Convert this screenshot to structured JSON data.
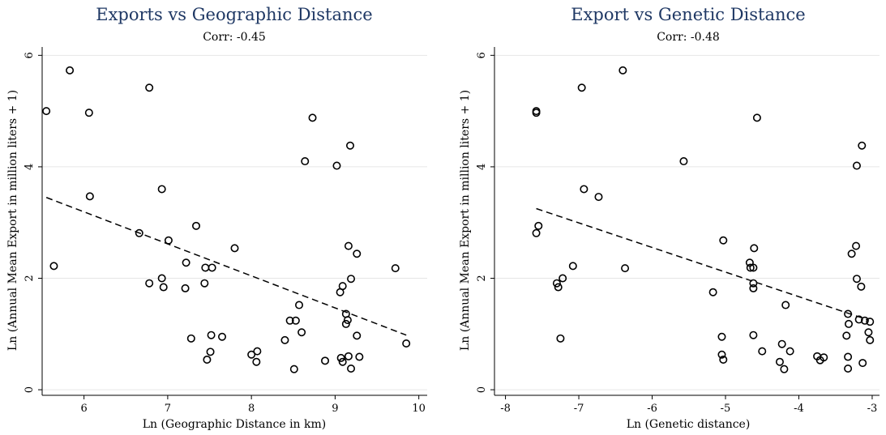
{
  "chart_data": [
    {
      "type": "scatter",
      "title": "Exports vs Geographic Distance",
      "subtitle": "Corr: -0.45",
      "xlabel": "Ln (Geographic Distance in km)",
      "ylabel": "Ln (Annual Mean Export in million liters + 1)",
      "xlim": [
        5.5,
        10.1
      ],
      "ylim": [
        -0.1,
        6.15
      ],
      "xticks": [
        6,
        7,
        8,
        9,
        10
      ],
      "yticks": [
        0,
        2,
        4,
        6
      ],
      "grid": true,
      "fit_line": [
        [
          5.55,
          3.45
        ],
        [
          9.85,
          0.98
        ]
      ],
      "points": [
        [
          5.55,
          5.0
        ],
        [
          5.83,
          5.73
        ],
        [
          6.06,
          4.97
        ],
        [
          6.07,
          3.47
        ],
        [
          5.64,
          2.22
        ],
        [
          6.78,
          5.42
        ],
        [
          6.66,
          2.81
        ],
        [
          6.93,
          3.6
        ],
        [
          7.01,
          2.68
        ],
        [
          6.78,
          1.91
        ],
        [
          6.93,
          2.0
        ],
        [
          6.95,
          1.84
        ],
        [
          7.21,
          1.82
        ],
        [
          7.22,
          2.28
        ],
        [
          7.34,
          2.94
        ],
        [
          7.45,
          2.19
        ],
        [
          7.53,
          2.19
        ],
        [
          7.44,
          1.91
        ],
        [
          7.28,
          0.92
        ],
        [
          7.52,
          0.98
        ],
        [
          7.51,
          0.68
        ],
        [
          7.47,
          0.54
        ],
        [
          7.65,
          0.95
        ],
        [
          7.8,
          2.54
        ],
        [
          8.0,
          0.63
        ],
        [
          8.07,
          0.69
        ],
        [
          8.06,
          0.5
        ],
        [
          8.4,
          0.89
        ],
        [
          8.46,
          1.24
        ],
        [
          8.53,
          1.24
        ],
        [
          8.57,
          1.52
        ],
        [
          8.6,
          1.03
        ],
        [
          8.51,
          0.37
        ],
        [
          8.64,
          4.1
        ],
        [
          8.73,
          4.88
        ],
        [
          9.02,
          4.02
        ],
        [
          9.18,
          4.38
        ],
        [
          9.16,
          2.58
        ],
        [
          9.26,
          2.44
        ],
        [
          9.19,
          1.99
        ],
        [
          9.09,
          1.86
        ],
        [
          9.06,
          1.75
        ],
        [
          9.13,
          1.36
        ],
        [
          9.13,
          1.18
        ],
        [
          9.15,
          1.25
        ],
        [
          9.26,
          0.97
        ],
        [
          9.07,
          0.57
        ],
        [
          9.09,
          0.5
        ],
        [
          9.16,
          0.6
        ],
        [
          9.19,
          0.38
        ],
        [
          9.29,
          0.59
        ],
        [
          8.88,
          0.52
        ],
        [
          9.72,
          2.18
        ],
        [
          9.85,
          0.83
        ]
      ]
    },
    {
      "type": "scatter",
      "title": "Export vs Genetic Distance",
      "subtitle": "Corr: -0.48",
      "xlabel": "Ln (Genetic distance)",
      "ylabel": "Ln (Annual Mean Export in million liters + 1)",
      "xlim": [
        -8.15,
        -2.9
      ],
      "ylim": [
        -0.1,
        6.15
      ],
      "xticks": [
        -8,
        -7,
        -6,
        -5,
        -4,
        -3
      ],
      "yticks": [
        0,
        2,
        4,
        6
      ],
      "grid": true,
      "fit_line": [
        [
          -7.58,
          3.25
        ],
        [
          -3.05,
          1.25
        ]
      ],
      "points": [
        [
          -7.58,
          5.0
        ],
        [
          -7.58,
          4.97
        ],
        [
          -7.55,
          2.94
        ],
        [
          -7.58,
          2.81
        ],
        [
          -7.3,
          1.91
        ],
        [
          -7.28,
          1.84
        ],
        [
          -7.22,
          2.0
        ],
        [
          -7.25,
          0.92
        ],
        [
          -7.08,
          2.22
        ],
        [
          -6.96,
          5.42
        ],
        [
          -6.93,
          3.6
        ],
        [
          -6.73,
          3.46
        ],
        [
          -6.4,
          5.73
        ],
        [
          -6.37,
          2.18
        ],
        [
          -5.57,
          4.1
        ],
        [
          -5.17,
          1.75
        ],
        [
          -5.03,
          2.68
        ],
        [
          -5.05,
          0.95
        ],
        [
          -5.05,
          0.63
        ],
        [
          -5.03,
          0.54
        ],
        [
          -4.67,
          2.28
        ],
        [
          -4.66,
          2.19
        ],
        [
          -4.62,
          2.19
        ],
        [
          -4.61,
          2.54
        ],
        [
          -4.62,
          1.91
        ],
        [
          -4.62,
          1.82
        ],
        [
          -4.62,
          0.98
        ],
        [
          -4.57,
          4.88
        ],
        [
          -4.5,
          0.69
        ],
        [
          -4.18,
          1.52
        ],
        [
          -4.23,
          0.82
        ],
        [
          -4.12,
          0.69
        ],
        [
          -4.26,
          0.5
        ],
        [
          -4.2,
          0.37
        ],
        [
          -3.75,
          0.6
        ],
        [
          -3.71,
          0.53
        ],
        [
          -3.66,
          0.58
        ],
        [
          -3.33,
          1.36
        ],
        [
          -3.32,
          1.18
        ],
        [
          -3.35,
          0.97
        ],
        [
          -3.33,
          0.59
        ],
        [
          -3.33,
          0.38
        ],
        [
          -3.28,
          2.44
        ],
        [
          -3.22,
          2.58
        ],
        [
          -3.21,
          1.99
        ],
        [
          -3.21,
          4.02
        ],
        [
          -3.14,
          4.38
        ],
        [
          -3.15,
          1.85
        ],
        [
          -3.18,
          1.26
        ],
        [
          -3.1,
          1.24
        ],
        [
          -3.03,
          1.22
        ],
        [
          -3.05,
          1.03
        ],
        [
          -3.03,
          0.89
        ],
        [
          -3.13,
          0.48
        ]
      ]
    }
  ]
}
